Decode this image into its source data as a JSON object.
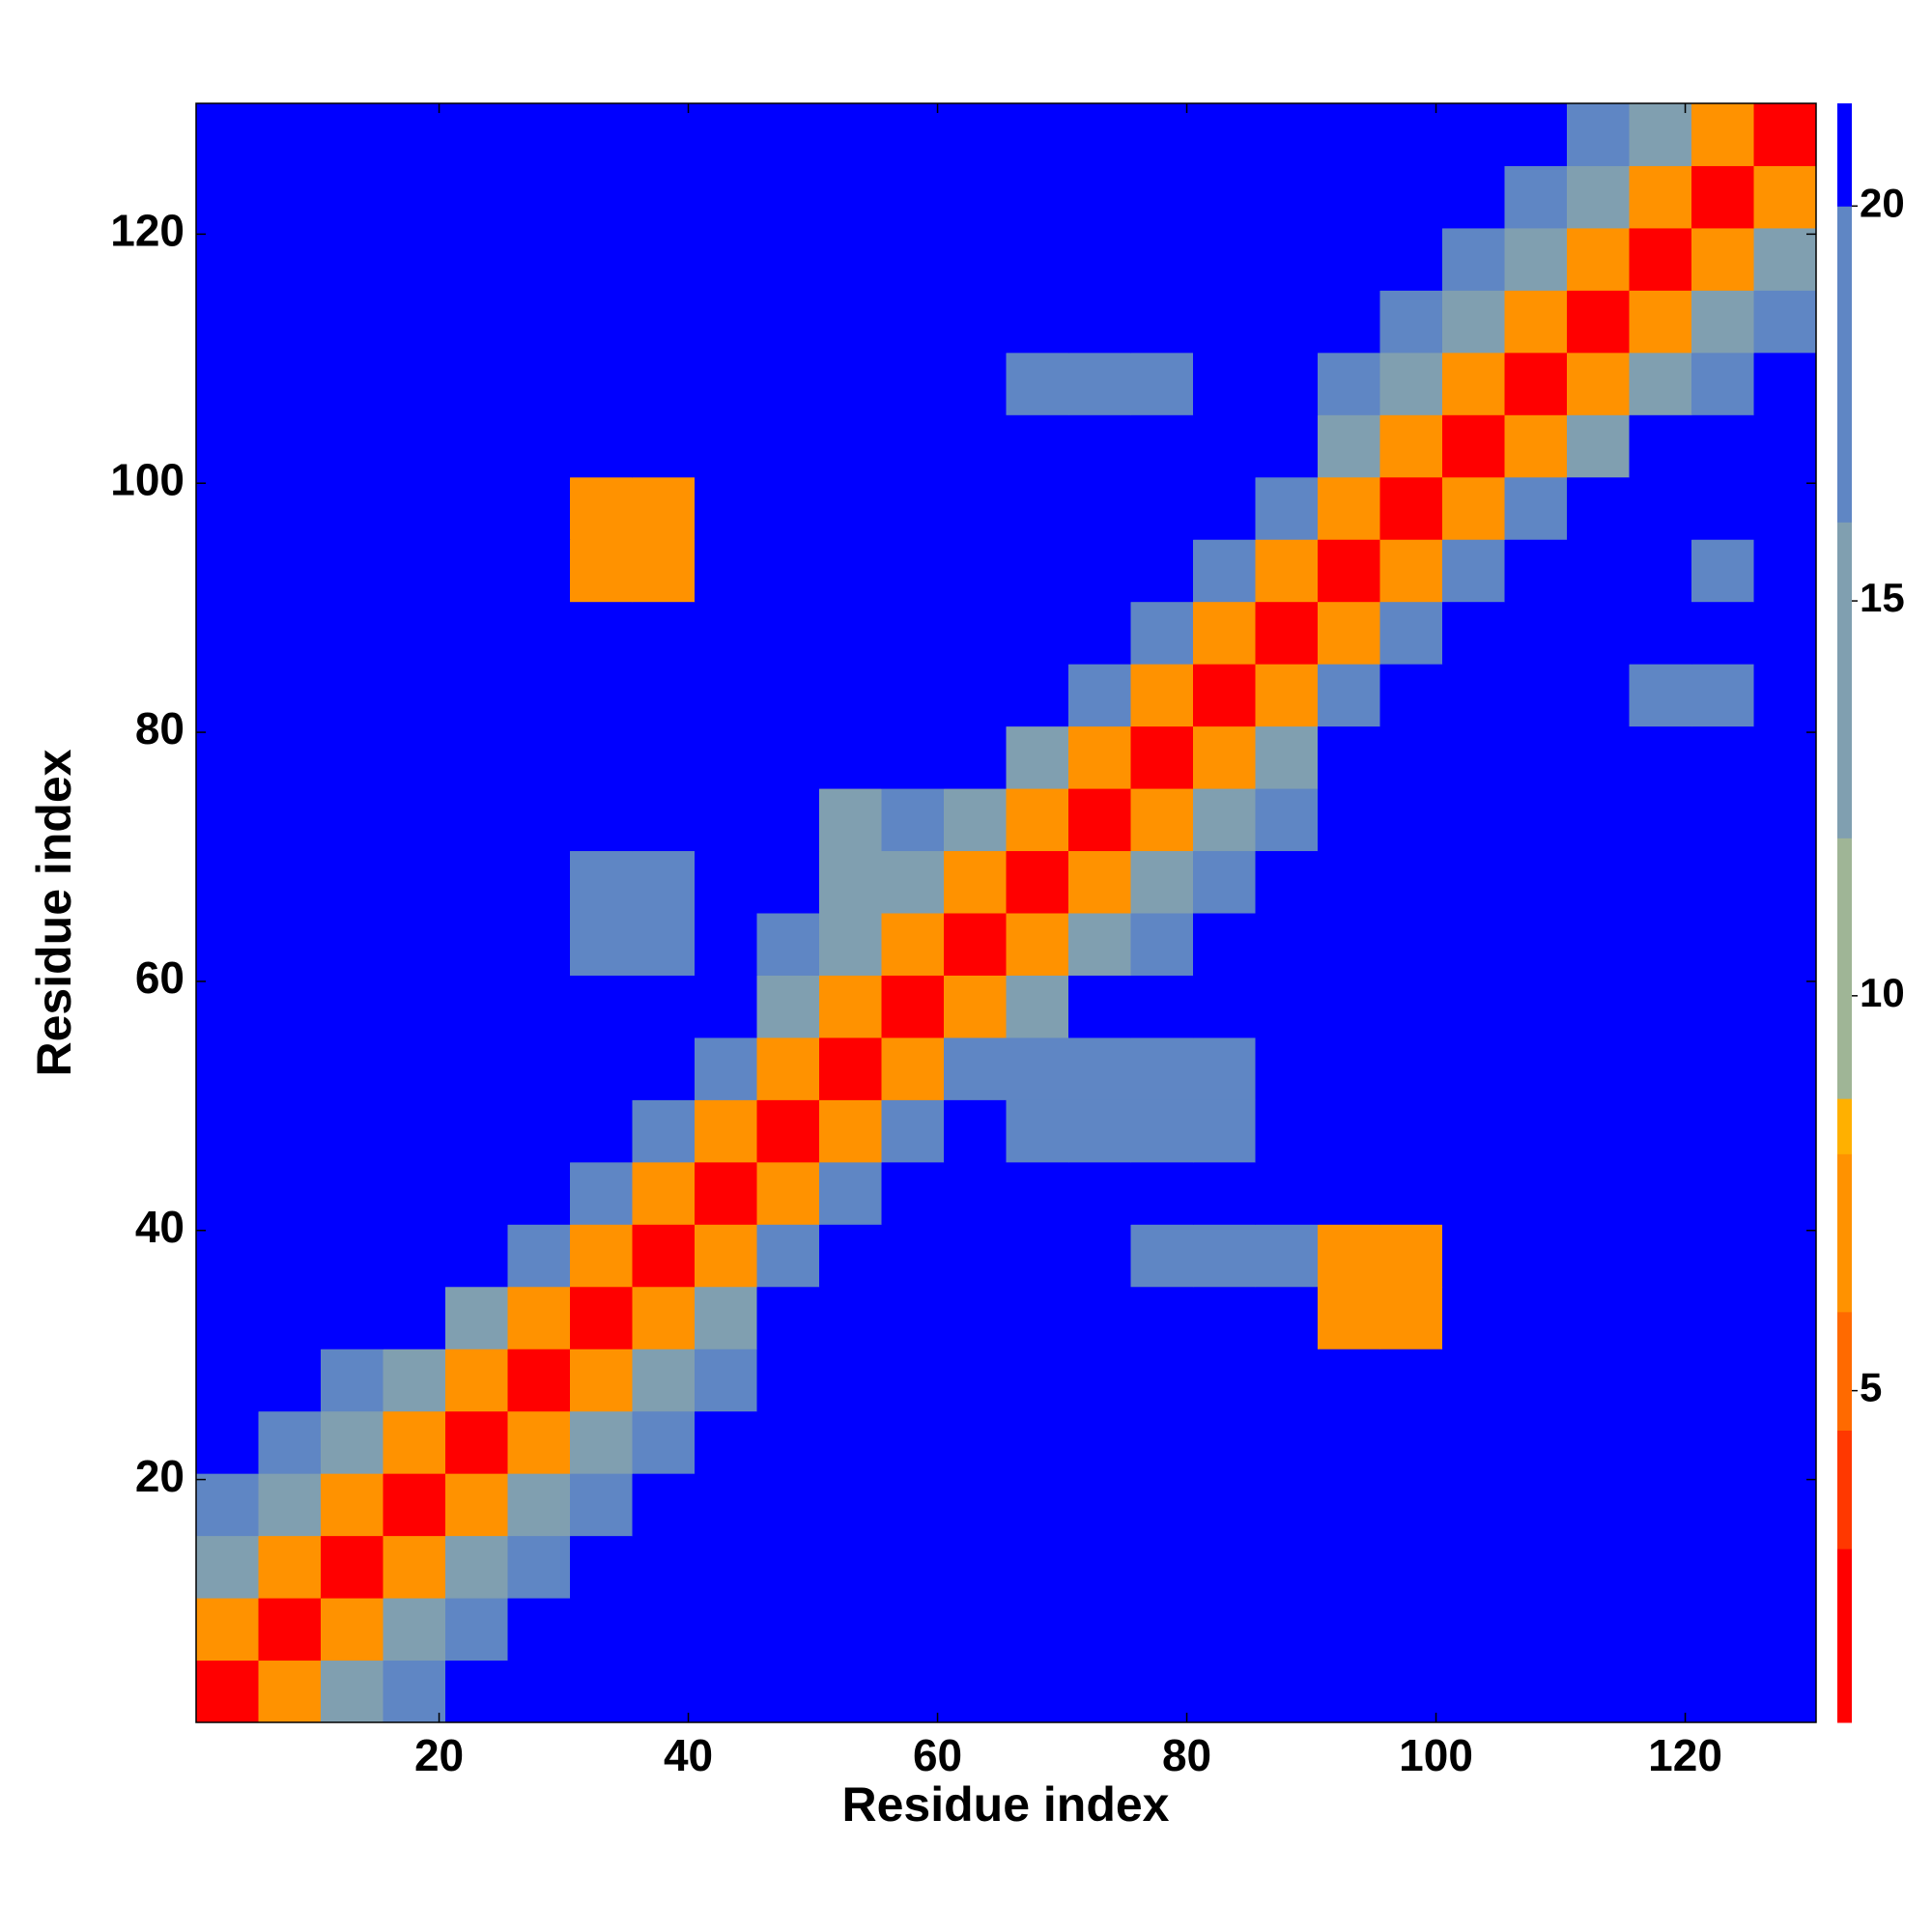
{
  "chart_data": {
    "type": "heatmap",
    "xlabel": "Residue index",
    "ylabel": "Residue index",
    "xlim": [
      0.5,
      130.5
    ],
    "ylim": [
      0.5,
      130.5
    ],
    "xticks": [
      20,
      40,
      60,
      80,
      100,
      120
    ],
    "yticks": [
      20,
      40,
      60,
      80,
      100,
      120
    ],
    "xbins": [
      0.5,
      5.5,
      10.5,
      15.5,
      20.5,
      25.5,
      30.5,
      35.5,
      40.5,
      45.5,
      50.5,
      55.5,
      60.5,
      65.5,
      70.5,
      75.5,
      80.5,
      85.5,
      90.5,
      95.5,
      100.5,
      105.5,
      110.5,
      115.5,
      120.5,
      125.5,
      130.5
    ],
    "ybins": [
      0.5,
      5.5,
      10.5,
      15.5,
      20.5,
      25.5,
      30.5,
      35.5,
      40.5,
      45.5,
      50.5,
      55.5,
      60.5,
      65.5,
      70.5,
      75.5,
      80.5,
      85.5,
      90.5,
      95.5,
      100.5,
      105.5,
      110.5,
      115.5,
      120.5,
      125.5,
      130.5
    ],
    "z": [
      [
        3,
        8,
        14,
        18,
        21,
        21,
        21,
        21,
        21,
        21,
        21,
        21,
        21,
        21,
        21,
        21,
        21,
        21,
        21,
        21,
        21,
        21,
        21,
        21,
        21,
        21
      ],
      [
        8,
        3,
        8,
        14,
        18,
        21,
        21,
        21,
        21,
        21,
        21,
        21,
        21,
        21,
        21,
        21,
        21,
        21,
        21,
        21,
        21,
        21,
        21,
        21,
        21,
        21
      ],
      [
        14,
        8,
        3,
        8,
        14,
        18,
        21,
        21,
        21,
        21,
        21,
        21,
        21,
        21,
        21,
        21,
        21,
        21,
        21,
        21,
        21,
        21,
        21,
        21,
        21,
        21
      ],
      [
        18,
        14,
        8,
        3,
        8,
        14,
        18,
        21,
        21,
        21,
        21,
        21,
        21,
        21,
        21,
        21,
        21,
        21,
        21,
        21,
        21,
        21,
        21,
        21,
        21,
        21
      ],
      [
        21,
        18,
        14,
        8,
        3,
        8,
        14,
        18,
        21,
        21,
        21,
        21,
        21,
        21,
        21,
        21,
        21,
        21,
        21,
        21,
        21,
        21,
        21,
        21,
        21,
        21
      ],
      [
        21,
        21,
        18,
        14,
        8,
        3,
        8,
        14,
        18,
        21,
        21,
        21,
        21,
        21,
        21,
        21,
        21,
        21,
        21,
        21,
        21,
        21,
        21,
        21,
        21,
        21
      ],
      [
        21,
        21,
        21,
        21,
        14,
        8,
        3,
        8,
        14,
        21,
        21,
        21,
        21,
        21,
        21,
        21,
        21,
        21,
        7,
        7,
        21,
        21,
        21,
        21,
        21,
        21
      ],
      [
        21,
        21,
        21,
        21,
        21,
        17,
        8,
        3,
        8,
        17,
        21,
        21,
        21,
        21,
        21,
        19,
        19,
        19,
        7,
        7,
        21,
        21,
        21,
        21,
        21,
        21
      ],
      [
        21,
        21,
        21,
        21,
        21,
        21,
        17,
        8,
        3,
        8,
        17,
        21,
        21,
        21,
        21,
        21,
        21,
        21,
        21,
        21,
        21,
        21,
        21,
        21,
        21,
        21
      ],
      [
        21,
        21,
        21,
        21,
        21,
        21,
        21,
        17,
        8,
        3,
        8,
        17,
        21,
        17,
        17,
        17,
        17,
        21,
        21,
        21,
        21,
        21,
        21,
        21,
        21,
        21
      ],
      [
        21,
        21,
        21,
        21,
        21,
        21,
        21,
        21,
        17,
        8,
        3,
        8,
        17,
        17,
        17,
        17,
        17,
        21,
        21,
        21,
        21,
        21,
        21,
        21,
        21,
        21
      ],
      [
        21,
        21,
        21,
        21,
        21,
        21,
        21,
        21,
        21,
        14,
        8,
        3,
        8,
        14,
        21,
        21,
        21,
        21,
        21,
        21,
        21,
        21,
        21,
        21,
        21,
        21
      ],
      [
        21,
        21,
        21,
        21,
        21,
        21,
        18,
        18,
        21,
        18,
        14,
        8,
        3,
        8,
        14,
        18,
        21,
        21,
        21,
        21,
        21,
        21,
        21,
        21,
        21,
        21
      ],
      [
        21,
        21,
        21,
        21,
        21,
        21,
        18,
        18,
        21,
        21,
        16,
        14,
        8,
        3,
        8,
        14,
        18,
        21,
        21,
        21,
        21,
        21,
        21,
        21,
        21,
        21
      ],
      [
        21,
        21,
        21,
        21,
        21,
        21,
        21,
        21,
        21,
        21,
        16,
        18,
        14,
        8,
        3,
        8,
        14,
        18,
        21,
        21,
        21,
        21,
        21,
        21,
        21,
        21
      ],
      [
        21,
        21,
        21,
        21,
        21,
        21,
        21,
        21,
        21,
        21,
        21,
        21,
        21,
        14,
        8,
        3,
        8,
        14,
        21,
        21,
        21,
        21,
        21,
        21,
        21,
        21
      ],
      [
        21,
        21,
        21,
        21,
        21,
        21,
        21,
        21,
        21,
        21,
        21,
        21,
        21,
        21,
        17,
        8,
        3,
        8,
        17,
        21,
        21,
        21,
        21,
        19,
        19,
        21
      ],
      [
        21,
        21,
        21,
        21,
        21,
        21,
        21,
        21,
        21,
        21,
        21,
        21,
        21,
        21,
        21,
        17,
        8,
        3,
        8,
        17,
        21,
        21,
        21,
        21,
        21,
        21
      ],
      [
        21,
        21,
        21,
        21,
        21,
        21,
        7,
        7,
        21,
        21,
        21,
        21,
        21,
        21,
        21,
        21,
        17,
        8,
        3,
        8,
        17,
        21,
        21,
        21,
        19,
        21
      ],
      [
        21,
        21,
        21,
        21,
        21,
        21,
        7,
        7,
        21,
        21,
        21,
        21,
        21,
        21,
        21,
        21,
        21,
        17,
        8,
        3,
        8,
        17,
        21,
        21,
        21,
        21
      ],
      [
        21,
        21,
        21,
        21,
        21,
        21,
        21,
        21,
        21,
        21,
        21,
        21,
        21,
        21,
        21,
        21,
        21,
        21,
        14,
        8,
        3,
        8,
        14,
        21,
        21,
        21
      ],
      [
        21,
        21,
        21,
        21,
        21,
        21,
        21,
        21,
        21,
        21,
        21,
        21,
        21,
        19,
        19,
        19,
        21,
        21,
        18,
        14,
        8,
        3,
        8,
        14,
        18,
        21
      ],
      [
        21,
        21,
        21,
        21,
        21,
        21,
        21,
        21,
        21,
        21,
        21,
        21,
        21,
        21,
        21,
        21,
        21,
        21,
        21,
        18,
        14,
        8,
        3,
        8,
        14,
        18
      ],
      [
        21,
        21,
        21,
        21,
        21,
        21,
        21,
        21,
        21,
        21,
        21,
        21,
        21,
        21,
        21,
        21,
        21,
        21,
        21,
        21,
        18,
        14,
        8,
        3,
        8,
        14
      ],
      [
        21,
        21,
        21,
        21,
        21,
        21,
        21,
        21,
        21,
        21,
        21,
        21,
        21,
        21,
        21,
        21,
        21,
        21,
        21,
        21,
        21,
        18,
        14,
        8,
        3,
        8
      ],
      [
        21,
        21,
        21,
        21,
        21,
        21,
        21,
        21,
        21,
        21,
        21,
        21,
        21,
        21,
        21,
        21,
        21,
        21,
        21,
        21,
        21,
        21,
        18,
        14,
        8,
        3
      ]
    ],
    "colorbar": {
      "lim": [
        0.8,
        21.3
      ],
      "ticks": [
        5,
        10,
        15,
        20
      ]
    },
    "colorscale": [
      {
        "value": 3,
        "color": "#ff0000"
      },
      {
        "value": 4.5,
        "color": "#ff3800"
      },
      {
        "value": 6,
        "color": "#ff6a00"
      },
      {
        "value": 8,
        "color": "#ff9200"
      },
      {
        "value": 8.7,
        "color": "#ffb000"
      },
      {
        "value": 12,
        "color": "#9fb596"
      },
      {
        "value": 16,
        "color": "#809fb0"
      },
      {
        "value": 20,
        "color": "#5f86c4"
      },
      {
        "value": 21.3,
        "color": "#0000ff"
      }
    ]
  }
}
